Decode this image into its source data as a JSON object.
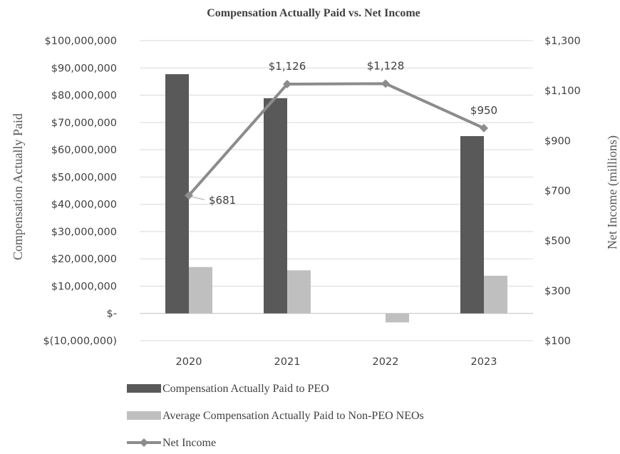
{
  "chart_data": {
    "type": "bar",
    "title": "Compensation Actually Paid vs. Net Income",
    "categories": [
      "2020",
      "2021",
      "2022",
      "2023"
    ],
    "series": [
      {
        "name": "Compensation Actually Paid to PEO",
        "type": "bar",
        "axis": "left",
        "color": "#595959",
        "values": [
          87700000,
          78900000,
          null,
          65000000
        ]
      },
      {
        "name": "Average Compensation Actually Paid to Non-PEO NEOs",
        "type": "bar",
        "axis": "left",
        "color": "#bfbfbf",
        "values": [
          17000000,
          15800000,
          -3300000,
          13800000
        ]
      },
      {
        "name": "Net Income",
        "type": "line",
        "axis": "right",
        "color": "#8c8c8c",
        "values": [
          681,
          1126,
          1128,
          950
        ],
        "labels": [
          "$681",
          "$1,126",
          "$1,128",
          "$950"
        ]
      }
    ],
    "ylabel": "Compensation Actually Paid",
    "y2label": "Net Income (millions)",
    "ylim": [
      -10000000,
      100000000
    ],
    "y2lim": [
      100,
      1300
    ],
    "yticks": [
      "$100,000,000",
      "$90,000,000",
      "$80,000,000",
      "$70,000,000",
      "$60,000,000",
      "$50,000,000",
      "$40,000,000",
      "$30,000,000",
      "$20,000,000",
      "$10,000,000",
      "$-",
      "$(10,000,000)"
    ],
    "y2ticks": [
      "$1,300",
      "$1,100",
      "$900",
      "$700",
      "$500",
      "$300",
      "$100"
    ],
    "grid": true,
    "legend": "bottom-left"
  }
}
